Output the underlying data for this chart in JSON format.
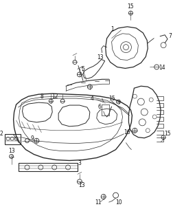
{
  "bg_color": "#ffffff",
  "fig_width": 2.52,
  "fig_height": 3.2,
  "dpi": 100,
  "line_color": "#2a2a2a",
  "label_color": "#111111",
  "label_fontsize": 5.5
}
